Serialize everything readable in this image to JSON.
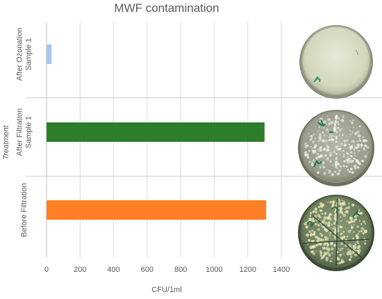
{
  "chart_data": {
    "type": "bar",
    "orientation": "horizontal",
    "title": "MWF contamination",
    "xlabel": "CFU/1ml",
    "ylabel": "Treatment",
    "categories": [
      [
        "After Ozonation",
        "Sample 1"
      ],
      [
        "After Filtration",
        "Sample 1"
      ],
      [
        "Before Filtration"
      ]
    ],
    "values": [
      30,
      1300,
      1310
    ],
    "bar_colors": [
      "#a9c4eb",
      "#2e7d2b",
      "#ff7f27"
    ],
    "xlim": [
      0,
      1400
    ],
    "xticks": [
      0,
      200,
      400,
      600,
      800,
      1000,
      1200,
      1400
    ],
    "grid": "vertical",
    "plate_images": [
      "clean-petri-dish",
      "contaminated-petri-dish",
      "heavily-contaminated-petri-dish"
    ]
  }
}
